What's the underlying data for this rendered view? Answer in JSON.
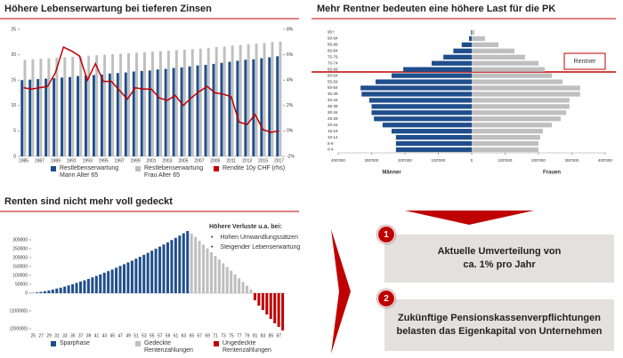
{
  "chart_data": [
    {
      "type": "bar",
      "title": "Höhere Lebenserwartung bei tieferen Zinsen",
      "categories": [
        "1985",
        null,
        "1987",
        null,
        "1989",
        null,
        "1991",
        null,
        "1993",
        null,
        "1995",
        null,
        "1997",
        null,
        "1999",
        null,
        "2001",
        null,
        "2003",
        null,
        "2005",
        null,
        "2007",
        null,
        "2009",
        null,
        "2011",
        null,
        "2013",
        null,
        "2015",
        null,
        "2017"
      ],
      "series": [
        {
          "name": "Restlebenserwartung Mann Alter 65",
          "color": "#1f4e8c",
          "values": [
            15.0,
            15.1,
            15.2,
            15.3,
            15.4,
            15.5,
            15.6,
            15.8,
            15.9,
            16.0,
            16.1,
            16.3,
            16.4,
            16.5,
            16.7,
            16.8,
            16.9,
            17.1,
            17.2,
            17.4,
            17.5,
            17.7,
            17.9,
            18.0,
            18.2,
            18.4,
            18.6,
            18.8,
            19.0,
            19.1,
            19.3,
            19.5,
            19.7
          ]
        },
        {
          "name": "Restlebenserwartung Frau Alter 65",
          "color": "#bfbfbf",
          "values": [
            19.0,
            19.1,
            19.2,
            19.3,
            19.4,
            19.5,
            19.6,
            19.7,
            19.8,
            19.9,
            20.0,
            20.1,
            20.2,
            20.3,
            20.4,
            20.5,
            20.6,
            20.7,
            20.8,
            20.9,
            21.0,
            21.1,
            21.2,
            21.3,
            21.5,
            21.6,
            21.8,
            21.9,
            22.1,
            22.2,
            22.3,
            22.5,
            22.6
          ]
        },
        {
          "name": "Rendite 10y CHF (rhs)",
          "color": "#c00000",
          "type": "line",
          "axis": "y2",
          "values": [
            3.4,
            3.3,
            3.4,
            3.5,
            4.6,
            6.6,
            6.3,
            5.9,
            4.0,
            5.3,
            3.9,
            3.9,
            3.2,
            2.5,
            3.4,
            3.3,
            3.3,
            2.6,
            2.4,
            2.8,
            2.0,
            2.6,
            3.1,
            3.5,
            3.0,
            2.9,
            2.7,
            0.7,
            0.5,
            1.3,
            0.1,
            -0.1,
            0.0
          ]
        }
      ],
      "ylim": [
        0,
        25
      ],
      "yticks": [
        0,
        5,
        10,
        15,
        20,
        25
      ],
      "y2lim": [
        -2,
        8
      ],
      "y2ticks": [
        {
          "value": -2,
          "label": "-2%"
        },
        {
          "value": 0,
          "label": "0%"
        },
        {
          "value": 2,
          "label": "2%"
        },
        {
          "value": 4,
          "label": "4%"
        },
        {
          "value": 6,
          "label": "6%"
        },
        {
          "value": 8,
          "label": "8%"
        }
      ]
    },
    {
      "type": "pyramid",
      "title": "Mehr Rentner bedeuten eine höhere Last für die PK",
      "categories": [
        "95+",
        "90-94",
        "85-89",
        "80-84",
        "75-79",
        "70-74",
        "65-69",
        "60-64",
        "55-59",
        "50-54",
        "45-49",
        "40-44",
        "35-39",
        "30-34",
        "25-29",
        "20-24",
        "15-19",
        "10-14",
        "5-9",
        "0-4"
      ],
      "series": [
        {
          "name": "Männer",
          "color": "#1f4e8c",
          "values": [
            -2000,
            -8000,
            -30000,
            -55000,
            -85000,
            -120000,
            -205000,
            -240000,
            -288000,
            -333000,
            -330000,
            -307000,
            -300000,
            -300000,
            -293000,
            -267000,
            -240000,
            -227000,
            -227000,
            -227000
          ]
        },
        {
          "name": "Frauen",
          "color": "#bfbfbf",
          "values": [
            8000,
            40000,
            80000,
            128000,
            160000,
            200000,
            219000,
            240000,
            272000,
            325000,
            325000,
            293000,
            293000,
            283000,
            267000,
            240000,
            213000,
            205000,
            200000,
            200000
          ]
        }
      ],
      "xlim": [
        -400000,
        400000
      ],
      "xticks": [
        {
          "value": -400000,
          "label": "400'000"
        },
        {
          "value": -300000,
          "label": "300'000"
        },
        {
          "value": -200000,
          "label": "200'000"
        },
        {
          "value": -100000,
          "label": "100'000"
        },
        0,
        {
          "value": 100000,
          "label": "100'000"
        },
        {
          "value": 200000,
          "label": "200'000"
        },
        {
          "value": 300000,
          "label": "300'000"
        },
        {
          "value": 400000,
          "label": "400'000"
        }
      ],
      "annotation": "Rentner"
    },
    {
      "type": "bar",
      "title": "Renten sind nicht mehr voll gedeckt",
      "categories": [
        "25",
        null,
        "27",
        null,
        "29",
        null,
        "31",
        null,
        "33",
        null,
        "35",
        null,
        "37",
        null,
        "39",
        null,
        "41",
        null,
        "43",
        null,
        "45",
        null,
        "47",
        null,
        "49",
        null,
        "51",
        null,
        "53",
        null,
        "55",
        null,
        "57",
        null,
        "59",
        null,
        "61",
        null,
        "63",
        null,
        "65",
        null,
        "67",
        null,
        "69",
        null,
        "71",
        null,
        "73",
        null,
        "75",
        null,
        "77",
        null,
        "79",
        null,
        "81",
        null,
        "83",
        null,
        "85",
        null,
        "87",
        null
      ],
      "series": [
        {
          "name": "Sparphase",
          "color": "#1f4e8c",
          "values": [
            1000,
            4000,
            7000,
            11000,
            15000,
            20000,
            26000,
            31000,
            37000,
            44000,
            50000,
            58000,
            65000,
            72000,
            80000,
            89000,
            97000,
            106000,
            115000,
            124000,
            133000,
            143000,
            153000,
            163000,
            173000,
            183000,
            194000,
            205000,
            216000,
            227000,
            239000,
            250000,
            262000,
            274000,
            286000,
            299000,
            311000,
            324000,
            337000,
            350000,
            null,
            null,
            null,
            null,
            null,
            null,
            null,
            null,
            null,
            null,
            null,
            null,
            null,
            null,
            null,
            null,
            null,
            null,
            null,
            null,
            null,
            null,
            null,
            null
          ]
        },
        {
          "name": "Gedeckte Rentenzahlungen",
          "color": "#bfbfbf",
          "values": [
            null,
            null,
            null,
            null,
            null,
            null,
            null,
            null,
            null,
            null,
            null,
            null,
            null,
            null,
            null,
            null,
            null,
            null,
            null,
            null,
            null,
            null,
            null,
            null,
            null,
            null,
            null,
            null,
            null,
            null,
            null,
            null,
            null,
            null,
            null,
            null,
            null,
            null,
            null,
            null,
            335000,
            315000,
            294000,
            273000,
            252000,
            231000,
            210000,
            189000,
            168000,
            147000,
            126000,
            105000,
            84000,
            63000,
            42000,
            21000,
            null,
            null,
            null,
            null,
            null,
            null,
            null,
            null
          ]
        },
        {
          "name": "Ungedeckte Rentenzahlungen",
          "color": "#c00000",
          "values": [
            null,
            null,
            null,
            null,
            null,
            null,
            null,
            null,
            null,
            null,
            null,
            null,
            null,
            null,
            null,
            null,
            null,
            null,
            null,
            null,
            null,
            null,
            null,
            null,
            null,
            null,
            null,
            null,
            null,
            null,
            null,
            null,
            null,
            null,
            null,
            null,
            null,
            null,
            null,
            null,
            null,
            null,
            null,
            null,
            null,
            null,
            null,
            null,
            null,
            null,
            null,
            null,
            null,
            null,
            null,
            null,
            -40000,
            -70000,
            -95000,
            -120000,
            -145000,
            -170000,
            -190000,
            -210000
          ]
        }
      ],
      "ylim": [
        -220000,
        360000
      ],
      "yticks": [
        300000,
        250000,
        200000,
        150000,
        100000,
        50000,
        0,
        {
          "value": -100000,
          "label": "(100000)"
        },
        {
          "value": -200000,
          "label": "(200000)"
        }
      ],
      "annotation": {
        "title": "Höhere Verluste u.a. bei:",
        "items": [
          "Hohen Umwandlungssätzen",
          "Steigender Lebenserwartung"
        ]
      }
    }
  ],
  "panel": {
    "steps": [
      {
        "number": "1",
        "text": "Aktuelle Umverteilung von ca. 1% pro Jahr"
      },
      {
        "number": "2",
        "text": "Zukünftige Pensionskassenverpflichtungen belasten das Eigenkapital von Unternehmen"
      }
    ]
  }
}
